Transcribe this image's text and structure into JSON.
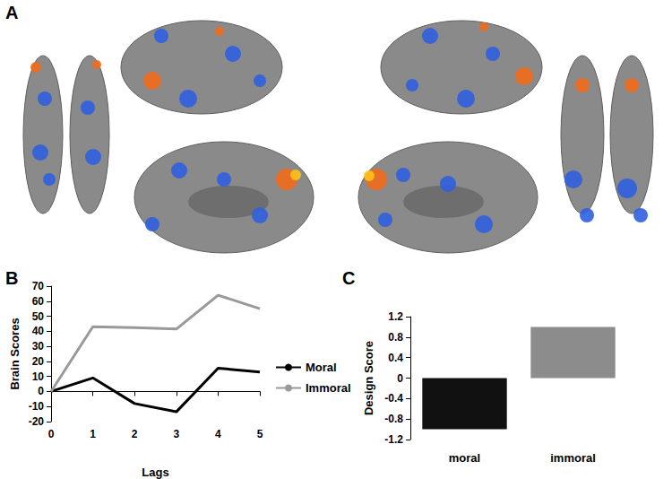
{
  "figure_panel": {
    "annotation": "A"
  },
  "chart_data": [
    {
      "annotation": "B",
      "type": "line",
      "x": [
        0,
        1,
        2,
        3,
        4,
        5
      ],
      "series": [
        {
          "name": "Moral",
          "color": "#000000",
          "values": [
            0,
            9,
            -8,
            -13.5,
            15.5,
            13
          ]
        },
        {
          "name": "Immoral",
          "color": "#999999",
          "values": [
            0,
            43,
            42.5,
            41.5,
            64,
            55
          ]
        }
      ],
      "xlim": [
        0,
        5
      ],
      "xticks": [
        0,
        1,
        2,
        3,
        4,
        5
      ],
      "ylim": [
        -20,
        70
      ],
      "yticks": [
        -20,
        -10,
        0,
        10,
        20,
        30,
        40,
        50,
        60,
        70
      ],
      "x_label": "Lags",
      "y_label": "Brain Scores",
      "legend": "right",
      "grid": false
    },
    {
      "annotation": "C",
      "type": "bar",
      "categories": [
        "moral",
        "immoral"
      ],
      "values": [
        -1,
        1
      ],
      "colors": [
        "#111111",
        "#8c8c8c"
      ],
      "ylim": [
        -1.2,
        1.2
      ],
      "yticks": [
        -1.2,
        -0.8,
        -0.4,
        0,
        0.4,
        0.8,
        1.2
      ],
      "y_label": "Design Score",
      "grid": false
    }
  ]
}
